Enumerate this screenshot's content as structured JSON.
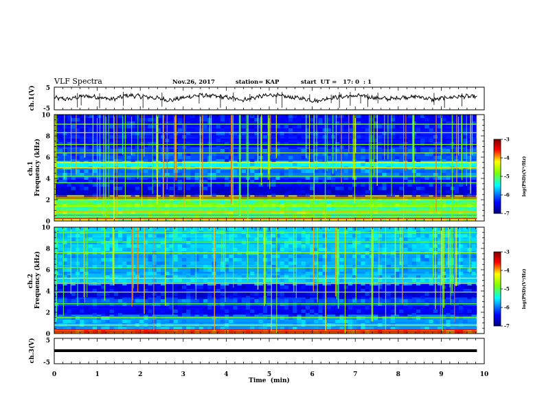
{
  "header": {
    "title": "VLF Spectra",
    "date": "Nov.26, 2017",
    "station": "station= KAP",
    "start": "start  UT =   17: 0  : 1"
  },
  "chart_data": [
    {
      "type": "line",
      "panel": "ch1-waveform",
      "ylabel": "ch.1(V)",
      "ylim": [
        -5,
        5
      ],
      "yticks": [
        "5",
        "-5"
      ],
      "xlim": [
        0,
        10
      ],
      "x_end": 9.83,
      "series": [
        {
          "values": [
            0.2,
            -0.3,
            1.1,
            0.6,
            -0.4,
            1.4,
            0.9,
            0.2,
            -0.8,
            0.5,
            1.5,
            1.0,
            0.3,
            -0.6,
            0.8,
            1.6,
            0.7,
            0.0,
            -1.1,
            0.4,
            0.9,
            1.2,
            0.3,
            -0.2,
            0.6,
            0.8,
            -0.5,
            0.4,
            1.0,
            0.7
          ]
        }
      ]
    },
    {
      "type": "heatmap",
      "panel": "ch1-spectrogram",
      "ylabel": "ch.1 Frequency (kHz)",
      "ylim": [
        0,
        10
      ],
      "yticks": [
        "0",
        "2",
        "4",
        "6",
        "8",
        "10"
      ],
      "xlim": [
        0,
        10
      ],
      "colorbar": {
        "label": "log(PSD)(V²/Hz)",
        "ticks": [
          "-3",
          "-4",
          "-5",
          "-6",
          "-7"
        ],
        "range": [
          -7,
          -3
        ]
      }
    },
    {
      "type": "heatmap",
      "panel": "ch2-spectrogram",
      "ylabel": "ch.2 Frequency (kHz)",
      "ylim": [
        0,
        10
      ],
      "yticks": [
        "0",
        "2",
        "4",
        "6",
        "8",
        "10"
      ],
      "xlim": [
        0,
        10
      ],
      "colorbar": {
        "label": "log(PSD)(V²/Hz)",
        "ticks": [
          "-3",
          "-4",
          "-5",
          "-6",
          "-7"
        ],
        "range": [
          -7,
          -3
        ]
      }
    },
    {
      "type": "line",
      "panel": "ch3-waveform",
      "ylabel": "ch.3(V)",
      "ylim": [
        -5,
        5
      ],
      "yticks": [
        "5",
        "-5"
      ],
      "xlim": [
        0,
        10
      ],
      "x_end": 9.83,
      "series": [
        {
          "values": [
            0,
            0
          ]
        }
      ]
    }
  ],
  "xaxis": {
    "label": "Time  (min)",
    "ticks": [
      "0",
      "1",
      "2",
      "3",
      "4",
      "5",
      "6",
      "7",
      "8",
      "9",
      "10"
    ]
  },
  "colors": {
    "colormap": [
      "#000080",
      "#0000ff",
      "#00ffff",
      "#7fff00",
      "#ffff00",
      "#ff0000",
      "#800000"
    ]
  }
}
